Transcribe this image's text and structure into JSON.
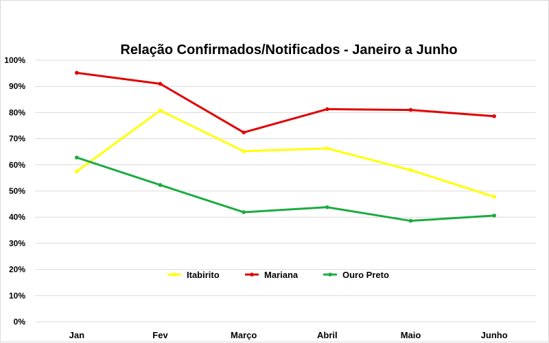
{
  "chart_data": {
    "type": "line",
    "title": "Relação Confirmados/Notificados - Janeiro a Junho",
    "xlabel": "",
    "ylabel": "",
    "categories": [
      "Jan",
      "Fev",
      "Março",
      "Abril",
      "Maio",
      "Junho"
    ],
    "ylim": [
      0,
      100
    ],
    "yticks": [
      "0%",
      "10%",
      "20%",
      "30%",
      "40%",
      "50%",
      "60%",
      "70%",
      "80%",
      "90%",
      "100%"
    ],
    "grid": true,
    "legend_position": "bottom-center",
    "series": [
      {
        "name": "Itabirito",
        "color": "#ffff00",
        "values": [
          57.5,
          80.8,
          65.2,
          66.3,
          58.0,
          47.8
        ]
      },
      {
        "name": "Mariana",
        "color": "#e00000",
        "values": [
          95.2,
          91.0,
          72.4,
          81.3,
          81.0,
          78.6
        ]
      },
      {
        "name": "Ouro Preto",
        "color": "#1aab40",
        "values": [
          62.8,
          52.3,
          41.9,
          43.8,
          38.6,
          40.6
        ]
      }
    ]
  }
}
